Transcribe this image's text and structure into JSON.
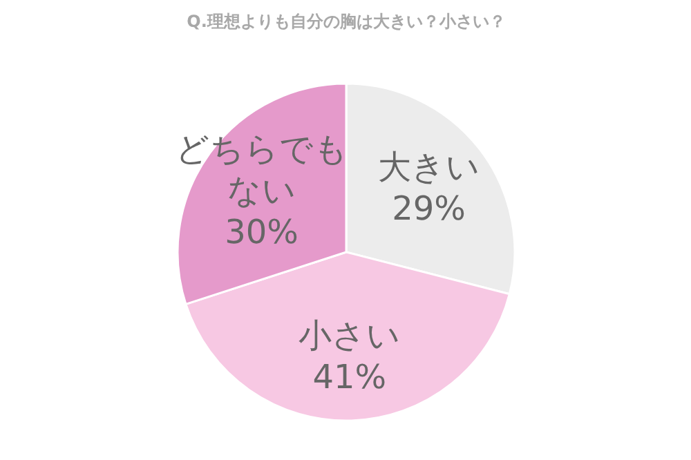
{
  "chart_data": {
    "type": "pie",
    "title": "Q.理想よりも自分の胸は大きい？小さい？",
    "categories": [
      "大きい",
      "小さい",
      "どちらでもない"
    ],
    "values": [
      29,
      41,
      30
    ],
    "value_labels": [
      "29%",
      "41%",
      "30%"
    ],
    "colors": [
      "#ececec",
      "#f7c8e3",
      "#e59acb"
    ]
  }
}
